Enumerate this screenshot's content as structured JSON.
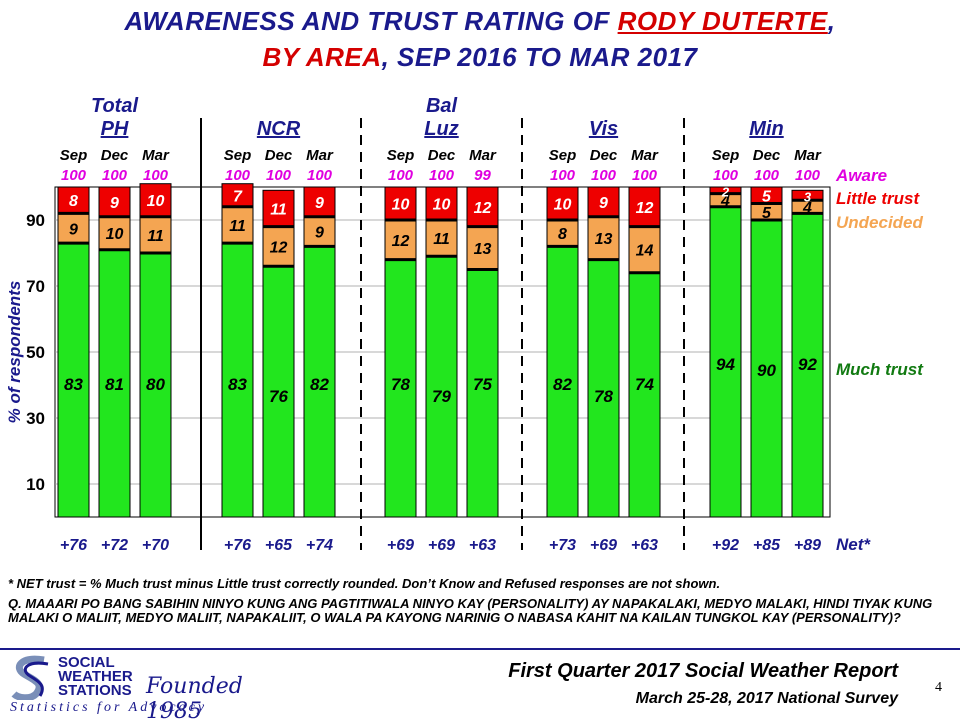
{
  "title": {
    "line1_prefix": "AWARENESS AND TRUST RATING OF ",
    "line1_name": "RODY DUTERTE",
    "line1_suffix": ",",
    "line2_red": "BY AREA",
    "line2_rest": ", SEP 2016 TO MAR 2017"
  },
  "chart_data": {
    "type": "bar",
    "stacked": true,
    "ylabel": "% of respondents",
    "yticks": [
      10,
      30,
      50,
      70,
      90
    ],
    "ylim": [
      0,
      100
    ],
    "colors": {
      "much_trust": "#22e61e",
      "undecided": "#f4a552",
      "little_trust": "#ee0000",
      "aware": "#e000e0"
    },
    "series_labels": {
      "aware": "Aware",
      "little_trust": "Little trust",
      "undecided": "Undecided",
      "much_trust": "Much trust",
      "net": "Net*"
    },
    "groups": [
      {
        "name_line1": "Total",
        "name_line2": "PH",
        "bars": [
          {
            "period": "Sep",
            "aware": "100",
            "much_trust": 83,
            "undecided": 9,
            "little_trust": 8,
            "net": "+76"
          },
          {
            "period": "Dec",
            "aware": "100",
            "much_trust": 81,
            "undecided": 10,
            "little_trust": 9,
            "net": "+72"
          },
          {
            "period": "Mar",
            "aware": "100",
            "much_trust": 80,
            "undecided": 11,
            "little_trust": 10,
            "net": "+70"
          }
        ]
      },
      {
        "name_line1": "",
        "name_line2": "NCR",
        "bars": [
          {
            "period": "Sep",
            "aware": "100",
            "much_trust": 83,
            "undecided": 11,
            "little_trust": 7,
            "net": "+76"
          },
          {
            "period": "Dec",
            "aware": "100",
            "much_trust": 76,
            "undecided": 12,
            "little_trust": 11,
            "net": "+65"
          },
          {
            "period": "Mar",
            "aware": "100",
            "much_trust": 82,
            "undecided": 9,
            "little_trust": 9,
            "net": "+74"
          }
        ]
      },
      {
        "name_line1": "Bal",
        "name_line2": "Luz",
        "bars": [
          {
            "period": "Sep",
            "aware": "100",
            "much_trust": 78,
            "undecided": 12,
            "little_trust": 10,
            "net": "+69"
          },
          {
            "period": "Dec",
            "aware": "100",
            "much_trust": 79,
            "undecided": 11,
            "little_trust": 10,
            "net": "+69"
          },
          {
            "period": "Mar",
            "aware": "99",
            "much_trust": 75,
            "undecided": 13,
            "little_trust": 12,
            "net": "+63"
          }
        ]
      },
      {
        "name_line1": "",
        "name_line2": "Vis",
        "bars": [
          {
            "period": "Sep",
            "aware": "100",
            "much_trust": 82,
            "undecided": 8,
            "little_trust": 10,
            "net": "+73"
          },
          {
            "period": "Dec",
            "aware": "100",
            "much_trust": 78,
            "undecided": 13,
            "little_trust": 9,
            "net": "+69"
          },
          {
            "period": "Mar",
            "aware": "100",
            "much_trust": 74,
            "undecided": 14,
            "little_trust": 12,
            "net": "+63"
          }
        ]
      },
      {
        "name_line1": "",
        "name_line2": "Min",
        "bars": [
          {
            "period": "Sep",
            "aware": "100",
            "much_trust": 94,
            "undecided": 4,
            "little_trust": 2,
            "net": "+92"
          },
          {
            "period": "Dec",
            "aware": "100",
            "much_trust": 90,
            "undecided": 5,
            "little_trust": 5,
            "net": "+85"
          },
          {
            "period": "Mar",
            "aware": "100",
            "much_trust": 92,
            "undecided": 4,
            "little_trust": 3,
            "net": "+89"
          }
        ]
      }
    ]
  },
  "footnote": "* NET trust = % Much trust minus Little trust correctly  rounded. Don’t Know and Refused responses are not shown.",
  "question": "Q. MAAARI PO BANG SABIHIN NINYO KUNG ANG PAGTITIWALA NINYO KAY (PERSONALITY) AY NAPAKALAKI, MEDYO MALAKI, HINDI TIYAK KUNG MALAKI O MALIIT, MEDYO MALIIT, NAPAKALIIT, O WALA PA KAYONG NARINIG O NABASA KAHIT NA KAILAN TUNGKOL KAY (PERSONALITY)?",
  "footer": {
    "report": "First Quarter 2017 Social Weather Report",
    "survey": "March 25-28, 2017 National Survey",
    "page": "4"
  },
  "logo": {
    "line1": "SOCIAL",
    "line2": "WEATHER",
    "line3": "STATIONS",
    "founded": "Founded 1985",
    "tagline": "Statistics for Advocacy"
  }
}
